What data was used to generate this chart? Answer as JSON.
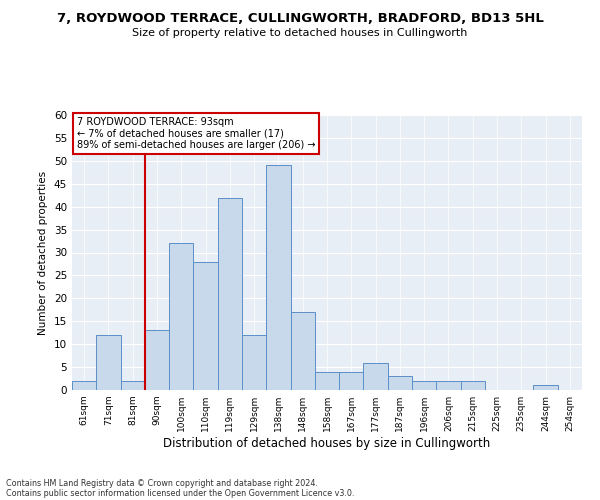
{
  "title": "7, ROYDWOOD TERRACE, CULLINGWORTH, BRADFORD, BD13 5HL",
  "subtitle": "Size of property relative to detached houses in Cullingworth",
  "xlabel": "Distribution of detached houses by size in Cullingworth",
  "ylabel": "Number of detached properties",
  "footnote1": "Contains HM Land Registry data © Crown copyright and database right 2024.",
  "footnote2": "Contains public sector information licensed under the Open Government Licence v3.0.",
  "annotation_title": "7 ROYDWOOD TERRACE: 93sqm",
  "annotation_line1": "← 7% of detached houses are smaller (17)",
  "annotation_line2": "89% of semi-detached houses are larger (206) →",
  "bar_color": "#c9d9ec",
  "bar_edge_color": "#5b8fc9",
  "vline_color": "#cc0000",
  "categories": [
    "61sqm",
    "71sqm",
    "81sqm",
    "90sqm",
    "100sqm",
    "110sqm",
    "119sqm",
    "129sqm",
    "138sqm",
    "148sqm",
    "158sqm",
    "167sqm",
    "177sqm",
    "187sqm",
    "196sqm",
    "206sqm",
    "215sqm",
    "225sqm",
    "235sqm",
    "244sqm",
    "254sqm"
  ],
  "values": [
    2,
    12,
    2,
    13,
    32,
    28,
    42,
    12,
    49,
    17,
    4,
    4,
    6,
    3,
    2,
    2,
    2,
    0,
    0,
    1,
    0
  ],
  "ylim": [
    0,
    60
  ],
  "yticks": [
    0,
    5,
    10,
    15,
    20,
    25,
    30,
    35,
    40,
    45,
    50,
    55,
    60
  ],
  "vline_x_index": 2.5,
  "grid_color": "#ffffff",
  "bg_color": "#e8eef5"
}
